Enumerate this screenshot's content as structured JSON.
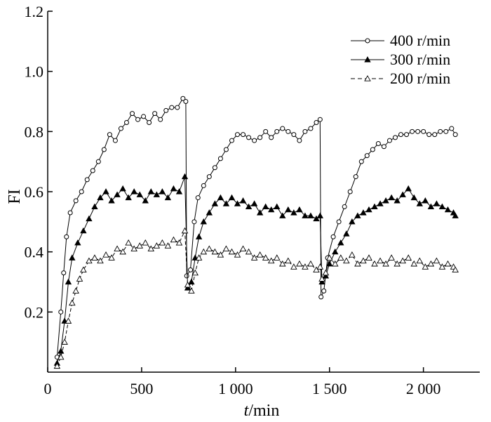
{
  "chart_data": {
    "type": "line",
    "xlabel": {
      "var": "t",
      "unit": "/min"
    },
    "ylabel": "FI",
    "xlim": [
      0,
      2300
    ],
    "ylim": [
      0,
      1.2
    ],
    "xticks": [
      0,
      500,
      1000,
      1500,
      2000
    ],
    "xtick_labels": [
      "0",
      "500",
      "1 000",
      "1 500",
      "2 000"
    ],
    "yticks": [
      0.2,
      0.4,
      0.6,
      0.8,
      1.0,
      1.2
    ],
    "ytick_labels": [
      "0.2",
      "0.4",
      "0.6",
      "0.8",
      "1.0",
      "1.2"
    ],
    "grid": false,
    "legend_position": "top-right",
    "series": [
      {
        "name": "400 r/min",
        "marker": "open-circle",
        "line": "solid",
        "points": [
          [
            50,
            0.05
          ],
          [
            70,
            0.2
          ],
          [
            85,
            0.33
          ],
          [
            100,
            0.45
          ],
          [
            120,
            0.53
          ],
          [
            150,
            0.57
          ],
          [
            180,
            0.6
          ],
          [
            210,
            0.64
          ],
          [
            240,
            0.67
          ],
          [
            270,
            0.7
          ],
          [
            300,
            0.74
          ],
          [
            330,
            0.79
          ],
          [
            360,
            0.77
          ],
          [
            390,
            0.81
          ],
          [
            420,
            0.83
          ],
          [
            450,
            0.86
          ],
          [
            480,
            0.84
          ],
          [
            510,
            0.85
          ],
          [
            540,
            0.83
          ],
          [
            570,
            0.86
          ],
          [
            600,
            0.84
          ],
          [
            630,
            0.87
          ],
          [
            660,
            0.88
          ],
          [
            690,
            0.88
          ],
          [
            720,
            0.91
          ],
          [
            735,
            0.9
          ],
          [
            740,
            0.32
          ],
          [
            760,
            0.34
          ],
          [
            780,
            0.5
          ],
          [
            800,
            0.58
          ],
          [
            830,
            0.62
          ],
          [
            860,
            0.65
          ],
          [
            890,
            0.68
          ],
          [
            920,
            0.71
          ],
          [
            950,
            0.74
          ],
          [
            980,
            0.77
          ],
          [
            1010,
            0.79
          ],
          [
            1040,
            0.79
          ],
          [
            1070,
            0.78
          ],
          [
            1100,
            0.77
          ],
          [
            1130,
            0.78
          ],
          [
            1160,
            0.8
          ],
          [
            1190,
            0.78
          ],
          [
            1220,
            0.8
          ],
          [
            1250,
            0.81
          ],
          [
            1280,
            0.8
          ],
          [
            1310,
            0.79
          ],
          [
            1340,
            0.77
          ],
          [
            1370,
            0.8
          ],
          [
            1400,
            0.81
          ],
          [
            1430,
            0.83
          ],
          [
            1450,
            0.84
          ],
          [
            1455,
            0.25
          ],
          [
            1470,
            0.27
          ],
          [
            1490,
            0.38
          ],
          [
            1520,
            0.45
          ],
          [
            1550,
            0.5
          ],
          [
            1580,
            0.55
          ],
          [
            1610,
            0.6
          ],
          [
            1640,
            0.65
          ],
          [
            1670,
            0.7
          ],
          [
            1700,
            0.72
          ],
          [
            1730,
            0.74
          ],
          [
            1760,
            0.76
          ],
          [
            1790,
            0.75
          ],
          [
            1820,
            0.77
          ],
          [
            1850,
            0.78
          ],
          [
            1880,
            0.79
          ],
          [
            1910,
            0.79
          ],
          [
            1940,
            0.8
          ],
          [
            1970,
            0.8
          ],
          [
            2000,
            0.8
          ],
          [
            2030,
            0.79
          ],
          [
            2060,
            0.79
          ],
          [
            2090,
            0.8
          ],
          [
            2120,
            0.8
          ],
          [
            2150,
            0.81
          ],
          [
            2170,
            0.79
          ]
        ]
      },
      {
        "name": "300 r/min",
        "marker": "filled-triangle",
        "line": "solid",
        "points": [
          [
            50,
            0.03
          ],
          [
            70,
            0.07
          ],
          [
            90,
            0.17
          ],
          [
            110,
            0.3
          ],
          [
            130,
            0.38
          ],
          [
            160,
            0.43
          ],
          [
            190,
            0.47
          ],
          [
            220,
            0.51
          ],
          [
            250,
            0.55
          ],
          [
            280,
            0.58
          ],
          [
            310,
            0.6
          ],
          [
            340,
            0.57
          ],
          [
            370,
            0.59
          ],
          [
            400,
            0.61
          ],
          [
            430,
            0.58
          ],
          [
            460,
            0.6
          ],
          [
            490,
            0.59
          ],
          [
            520,
            0.57
          ],
          [
            550,
            0.6
          ],
          [
            580,
            0.59
          ],
          [
            610,
            0.6
          ],
          [
            640,
            0.58
          ],
          [
            670,
            0.61
          ],
          [
            700,
            0.6
          ],
          [
            730,
            0.65
          ],
          [
            745,
            0.28
          ],
          [
            765,
            0.3
          ],
          [
            785,
            0.38
          ],
          [
            805,
            0.45
          ],
          [
            830,
            0.5
          ],
          [
            860,
            0.53
          ],
          [
            890,
            0.56
          ],
          [
            920,
            0.58
          ],
          [
            950,
            0.56
          ],
          [
            980,
            0.58
          ],
          [
            1010,
            0.56
          ],
          [
            1040,
            0.57
          ],
          [
            1070,
            0.55
          ],
          [
            1100,
            0.56
          ],
          [
            1130,
            0.53
          ],
          [
            1160,
            0.55
          ],
          [
            1190,
            0.54
          ],
          [
            1220,
            0.55
          ],
          [
            1250,
            0.52
          ],
          [
            1280,
            0.54
          ],
          [
            1310,
            0.53
          ],
          [
            1340,
            0.54
          ],
          [
            1370,
            0.52
          ],
          [
            1400,
            0.52
          ],
          [
            1430,
            0.51
          ],
          [
            1450,
            0.52
          ],
          [
            1460,
            0.3
          ],
          [
            1480,
            0.32
          ],
          [
            1500,
            0.36
          ],
          [
            1530,
            0.4
          ],
          [
            1560,
            0.43
          ],
          [
            1590,
            0.46
          ],
          [
            1620,
            0.5
          ],
          [
            1650,
            0.52
          ],
          [
            1680,
            0.53
          ],
          [
            1710,
            0.54
          ],
          [
            1740,
            0.55
          ],
          [
            1770,
            0.56
          ],
          [
            1800,
            0.57
          ],
          [
            1830,
            0.58
          ],
          [
            1860,
            0.57
          ],
          [
            1890,
            0.59
          ],
          [
            1920,
            0.61
          ],
          [
            1950,
            0.58
          ],
          [
            1980,
            0.56
          ],
          [
            2010,
            0.57
          ],
          [
            2040,
            0.55
          ],
          [
            2070,
            0.56
          ],
          [
            2100,
            0.55
          ],
          [
            2130,
            0.54
          ],
          [
            2160,
            0.53
          ],
          [
            2170,
            0.52
          ]
        ]
      },
      {
        "name": "200 r/min",
        "marker": "open-triangle",
        "line": "dashed",
        "points": [
          [
            50,
            0.02
          ],
          [
            70,
            0.05
          ],
          [
            90,
            0.1
          ],
          [
            110,
            0.17
          ],
          [
            130,
            0.23
          ],
          [
            150,
            0.27
          ],
          [
            170,
            0.31
          ],
          [
            190,
            0.34
          ],
          [
            220,
            0.37
          ],
          [
            250,
            0.38
          ],
          [
            280,
            0.37
          ],
          [
            310,
            0.39
          ],
          [
            340,
            0.38
          ],
          [
            370,
            0.41
          ],
          [
            400,
            0.4
          ],
          [
            430,
            0.43
          ],
          [
            460,
            0.41
          ],
          [
            490,
            0.42
          ],
          [
            520,
            0.43
          ],
          [
            550,
            0.41
          ],
          [
            580,
            0.42
          ],
          [
            610,
            0.43
          ],
          [
            640,
            0.42
          ],
          [
            670,
            0.44
          ],
          [
            700,
            0.43
          ],
          [
            730,
            0.47
          ],
          [
            745,
            0.29
          ],
          [
            765,
            0.27
          ],
          [
            785,
            0.33
          ],
          [
            805,
            0.38
          ],
          [
            830,
            0.4
          ],
          [
            860,
            0.41
          ],
          [
            890,
            0.4
          ],
          [
            920,
            0.39
          ],
          [
            950,
            0.41
          ],
          [
            980,
            0.4
          ],
          [
            1010,
            0.39
          ],
          [
            1040,
            0.41
          ],
          [
            1070,
            0.4
          ],
          [
            1100,
            0.38
          ],
          [
            1130,
            0.39
          ],
          [
            1160,
            0.38
          ],
          [
            1190,
            0.37
          ],
          [
            1220,
            0.38
          ],
          [
            1250,
            0.36
          ],
          [
            1280,
            0.37
          ],
          [
            1310,
            0.35
          ],
          [
            1340,
            0.36
          ],
          [
            1370,
            0.35
          ],
          [
            1400,
            0.36
          ],
          [
            1430,
            0.34
          ],
          [
            1450,
            0.35
          ],
          [
            1460,
            0.31
          ],
          [
            1480,
            0.33
          ],
          [
            1500,
            0.38
          ],
          [
            1530,
            0.36
          ],
          [
            1560,
            0.38
          ],
          [
            1590,
            0.37
          ],
          [
            1620,
            0.39
          ],
          [
            1650,
            0.36
          ],
          [
            1680,
            0.37
          ],
          [
            1710,
            0.38
          ],
          [
            1740,
            0.36
          ],
          [
            1770,
            0.37
          ],
          [
            1800,
            0.36
          ],
          [
            1830,
            0.38
          ],
          [
            1860,
            0.36
          ],
          [
            1890,
            0.37
          ],
          [
            1920,
            0.38
          ],
          [
            1950,
            0.36
          ],
          [
            1980,
            0.37
          ],
          [
            2010,
            0.35
          ],
          [
            2040,
            0.36
          ],
          [
            2070,
            0.37
          ],
          [
            2100,
            0.35
          ],
          [
            2130,
            0.36
          ],
          [
            2160,
            0.35
          ],
          [
            2170,
            0.34
          ]
        ]
      }
    ]
  }
}
